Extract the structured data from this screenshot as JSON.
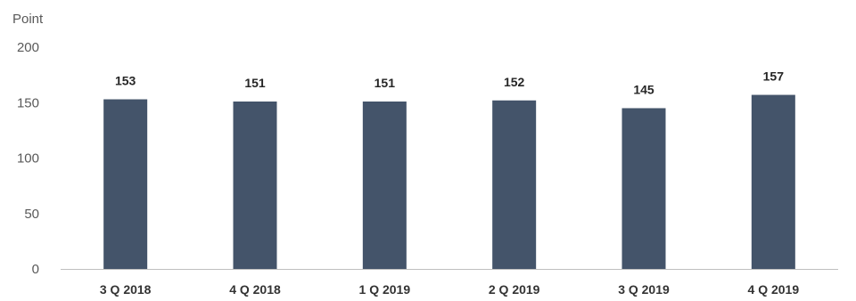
{
  "chart_data": {
    "type": "bar",
    "title": "",
    "xlabel": "",
    "ylabel": "Point",
    "categories": [
      "3 Q 2018",
      "4 Q 2018",
      "1 Q 2019",
      "2 Q 2019",
      "3 Q 2019",
      "4 Q 2019"
    ],
    "values": [
      153,
      151,
      151,
      152,
      145,
      157
    ],
    "data_labels": [
      "153",
      "151",
      "151",
      "152",
      "145",
      "157"
    ],
    "ylim": [
      0,
      200
    ],
    "yticks": [
      0,
      50,
      100,
      150,
      200
    ],
    "grid": false,
    "legend": "none",
    "bar_color": "#44546a"
  }
}
